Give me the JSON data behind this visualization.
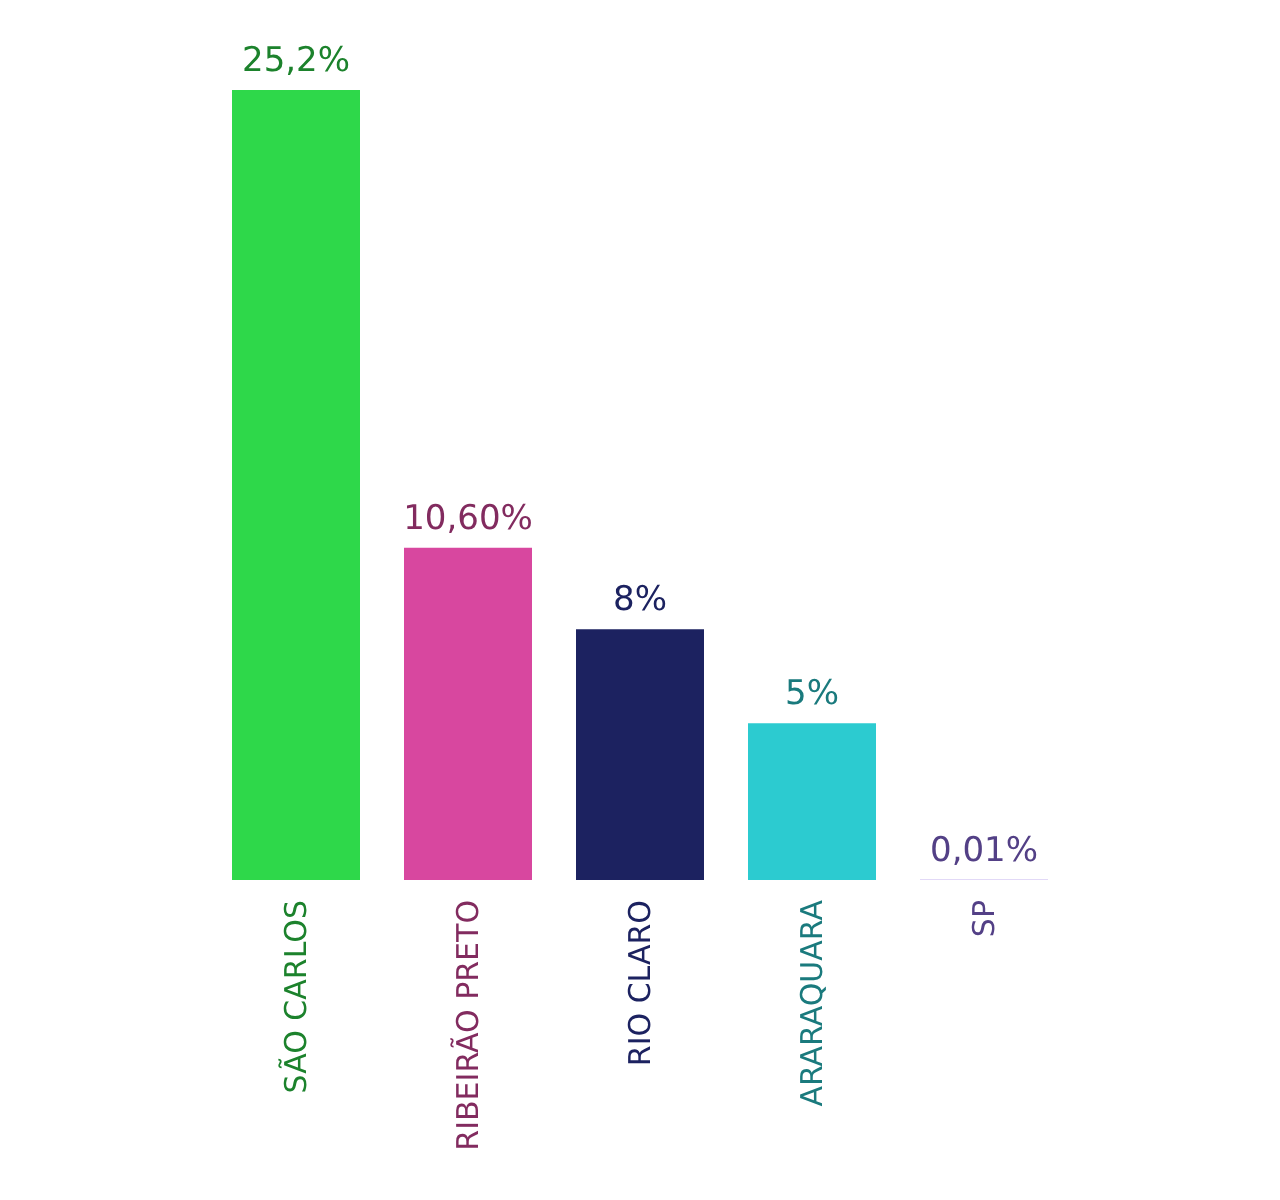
{
  "chart_data": {
    "type": "bar",
    "categories": [
      "SÃO CARLOS",
      "RIBEIRÃO PRETO",
      "RIO CLARO",
      "ARARAQUARA",
      "SP"
    ],
    "values": [
      25.2,
      10.6,
      8,
      5,
      0.01
    ],
    "value_labels": [
      "25,2%",
      "10,60%",
      "8%",
      "5%",
      "0,01%"
    ],
    "colors": [
      "#2ed84a",
      "#d8479f",
      "#1c2260",
      "#2ccbd0",
      "#8a6ae0"
    ]
  }
}
